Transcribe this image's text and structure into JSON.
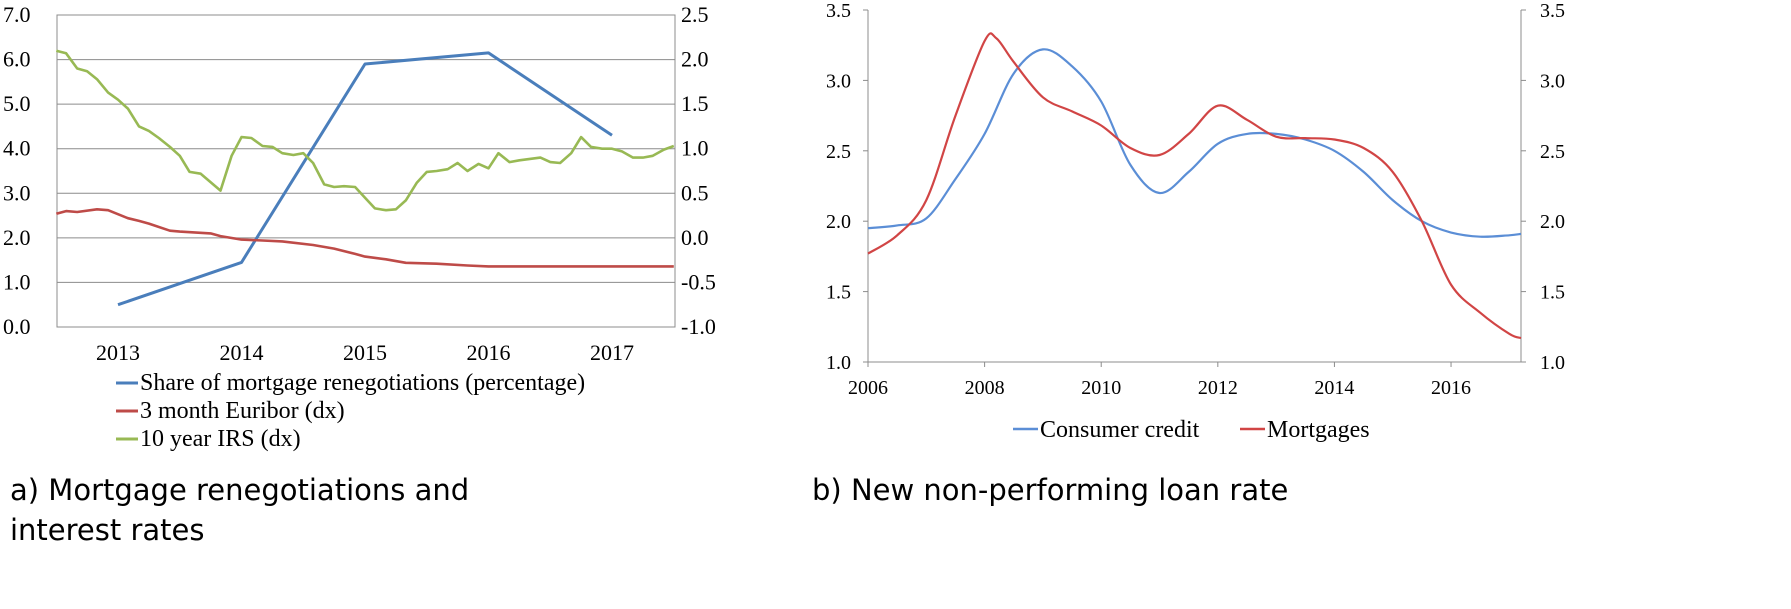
{
  "chart_data": [
    {
      "type": "line",
      "caption": "a) Mortgage renegotiations and interest rates",
      "x_ticks": [
        "2013",
        "2014",
        "2015",
        "2016",
        "2017"
      ],
      "y_left": {
        "ticks": [
          "0.0",
          "1.0",
          "2.0",
          "3.0",
          "4.0",
          "5.0",
          "6.0",
          "7.0"
        ],
        "range": [
          0,
          7
        ]
      },
      "y_right": {
        "ticks": [
          "-1.0",
          "-0.5",
          "0.0",
          "0.5",
          "1.0",
          "1.5",
          "2.0",
          "2.5"
        ],
        "range": [
          -1,
          2.5
        ]
      },
      "grid": "horizontal",
      "legend_position": "bottom",
      "series": [
        {
          "name": "Share of mortgage renegotiations  (percentage)",
          "axis": "left",
          "color": "#4a7ebb",
          "points": [
            [
              2013.0,
              0.5
            ],
            [
              2014.0,
              1.45
            ],
            [
              2015.0,
              5.9
            ],
            [
              2016.0,
              6.15
            ],
            [
              2017.0,
              4.3
            ]
          ]
        },
        {
          "name": "3 month Euribor (dx)",
          "axis": "right",
          "color": "#be4b48",
          "points": [
            [
              2012.5,
              0.27
            ],
            [
              2012.58,
              0.3
            ],
            [
              2012.67,
              0.29
            ],
            [
              2012.83,
              0.32
            ],
            [
              2012.92,
              0.31
            ],
            [
              2013.08,
              0.22
            ],
            [
              2013.17,
              0.19
            ],
            [
              2013.25,
              0.16
            ],
            [
              2013.42,
              0.08
            ],
            [
              2013.5,
              0.07
            ],
            [
              2013.75,
              0.05
            ],
            [
              2013.83,
              0.02
            ],
            [
              2014.0,
              -0.02
            ],
            [
              2014.17,
              -0.03
            ],
            [
              2014.33,
              -0.04
            ],
            [
              2014.58,
              -0.08
            ],
            [
              2014.75,
              -0.12
            ],
            [
              2014.92,
              -0.18
            ],
            [
              2015.0,
              -0.21
            ],
            [
              2015.17,
              -0.24
            ],
            [
              2015.33,
              -0.28
            ],
            [
              2015.58,
              -0.29
            ],
            [
              2015.83,
              -0.31
            ],
            [
              2016.0,
              -0.32
            ],
            [
              2016.5,
              -0.32
            ],
            [
              2017.0,
              -0.32
            ],
            [
              2017.5,
              -0.32
            ]
          ]
        },
        {
          "name": "10 year IRS (dx)",
          "axis": "right",
          "color": "#98b954",
          "points": [
            [
              2012.5,
              2.1
            ],
            [
              2012.58,
              2.07
            ],
            [
              2012.67,
              1.9
            ],
            [
              2012.75,
              1.87
            ],
            [
              2012.83,
              1.78
            ],
            [
              2012.92,
              1.63
            ],
            [
              2013.0,
              1.55
            ],
            [
              2013.08,
              1.45
            ],
            [
              2013.17,
              1.25
            ],
            [
              2013.25,
              1.2
            ],
            [
              2013.33,
              1.12
            ],
            [
              2013.42,
              1.02
            ],
            [
              2013.5,
              0.92
            ],
            [
              2013.58,
              0.74
            ],
            [
              2013.67,
              0.72
            ],
            [
              2013.83,
              0.53
            ],
            [
              2013.92,
              0.92
            ],
            [
              2014.0,
              1.13
            ],
            [
              2014.08,
              1.12
            ],
            [
              2014.17,
              1.03
            ],
            [
              2014.25,
              1.02
            ],
            [
              2014.33,
              0.95
            ],
            [
              2014.42,
              0.93
            ],
            [
              2014.5,
              0.95
            ],
            [
              2014.58,
              0.84
            ],
            [
              2014.67,
              0.6
            ],
            [
              2014.75,
              0.57
            ],
            [
              2014.83,
              0.58
            ],
            [
              2014.92,
              0.57
            ],
            [
              2015.0,
              0.45
            ],
            [
              2015.08,
              0.33
            ],
            [
              2015.17,
              0.31
            ],
            [
              2015.25,
              0.32
            ],
            [
              2015.33,
              0.42
            ],
            [
              2015.42,
              0.62
            ],
            [
              2015.5,
              0.74
            ],
            [
              2015.58,
              0.75
            ],
            [
              2015.67,
              0.77
            ],
            [
              2015.75,
              0.84
            ],
            [
              2015.83,
              0.75
            ],
            [
              2015.92,
              0.83
            ],
            [
              2016.0,
              0.78
            ],
            [
              2016.08,
              0.95
            ],
            [
              2016.17,
              0.85
            ],
            [
              2016.25,
              0.87
            ],
            [
              2016.42,
              0.9
            ],
            [
              2016.5,
              0.85
            ],
            [
              2016.58,
              0.84
            ],
            [
              2016.67,
              0.95
            ],
            [
              2016.75,
              1.13
            ],
            [
              2016.83,
              1.02
            ],
            [
              2016.92,
              1.0
            ],
            [
              2017.0,
              1.0
            ],
            [
              2017.08,
              0.97
            ],
            [
              2017.17,
              0.9
            ],
            [
              2017.25,
              0.9
            ],
            [
              2017.33,
              0.92
            ],
            [
              2017.42,
              0.99
            ],
            [
              2017.5,
              1.03
            ]
          ]
        }
      ]
    },
    {
      "type": "line",
      "caption": "b) New non-performing loan rate",
      "x_ticks": [
        "2006",
        "2008",
        "2010",
        "2012",
        "2014",
        "2016"
      ],
      "xlim": [
        2006,
        2017.2
      ],
      "y_left": {
        "ticks": [
          "1.0",
          "1.5",
          "2.0",
          "2.5",
          "3.0",
          "3.5"
        ],
        "range": [
          1,
          3.5
        ]
      },
      "y_right": {
        "ticks": [
          "1.0",
          "1.5",
          "2.0",
          "2.5",
          "3.0",
          "3.5"
        ],
        "range": [
          1,
          3.5
        ]
      },
      "grid": "none",
      "legend_position": "bottom",
      "series": [
        {
          "name": "Consumer credit",
          "color": "#5b8ed6",
          "points": [
            [
              2006.0,
              1.95
            ],
            [
              2006.5,
              1.97
            ],
            [
              2007.0,
              2.02
            ],
            [
              2007.5,
              2.3
            ],
            [
              2008.0,
              2.62
            ],
            [
              2008.5,
              3.05
            ],
            [
              2009.0,
              3.22
            ],
            [
              2009.5,
              3.1
            ],
            [
              2010.0,
              2.85
            ],
            [
              2010.5,
              2.4
            ],
            [
              2011.0,
              2.2
            ],
            [
              2011.5,
              2.35
            ],
            [
              2012.0,
              2.55
            ],
            [
              2012.5,
              2.62
            ],
            [
              2013.0,
              2.62
            ],
            [
              2013.5,
              2.58
            ],
            [
              2014.0,
              2.5
            ],
            [
              2014.5,
              2.35
            ],
            [
              2015.0,
              2.15
            ],
            [
              2015.5,
              2.0
            ],
            [
              2016.0,
              1.92
            ],
            [
              2016.5,
              1.89
            ],
            [
              2017.0,
              1.9
            ],
            [
              2017.2,
              1.91
            ]
          ]
        },
        {
          "name": "Mortgages",
          "color": "#d14545",
          "points": [
            [
              2006.0,
              1.77
            ],
            [
              2006.5,
              1.9
            ],
            [
              2007.0,
              2.15
            ],
            [
              2007.5,
              2.75
            ],
            [
              2008.0,
              3.28
            ],
            [
              2008.2,
              3.3
            ],
            [
              2008.5,
              3.13
            ],
            [
              2009.0,
              2.88
            ],
            [
              2009.5,
              2.78
            ],
            [
              2010.0,
              2.68
            ],
            [
              2010.5,
              2.52
            ],
            [
              2011.0,
              2.47
            ],
            [
              2011.5,
              2.62
            ],
            [
              2012.0,
              2.82
            ],
            [
              2012.5,
              2.72
            ],
            [
              2013.0,
              2.6
            ],
            [
              2013.5,
              2.59
            ],
            [
              2014.0,
              2.58
            ],
            [
              2014.5,
              2.52
            ],
            [
              2015.0,
              2.35
            ],
            [
              2015.5,
              2.0
            ],
            [
              2016.0,
              1.55
            ],
            [
              2016.5,
              1.35
            ],
            [
              2017.0,
              1.2
            ],
            [
              2017.2,
              1.17
            ]
          ]
        }
      ]
    }
  ]
}
